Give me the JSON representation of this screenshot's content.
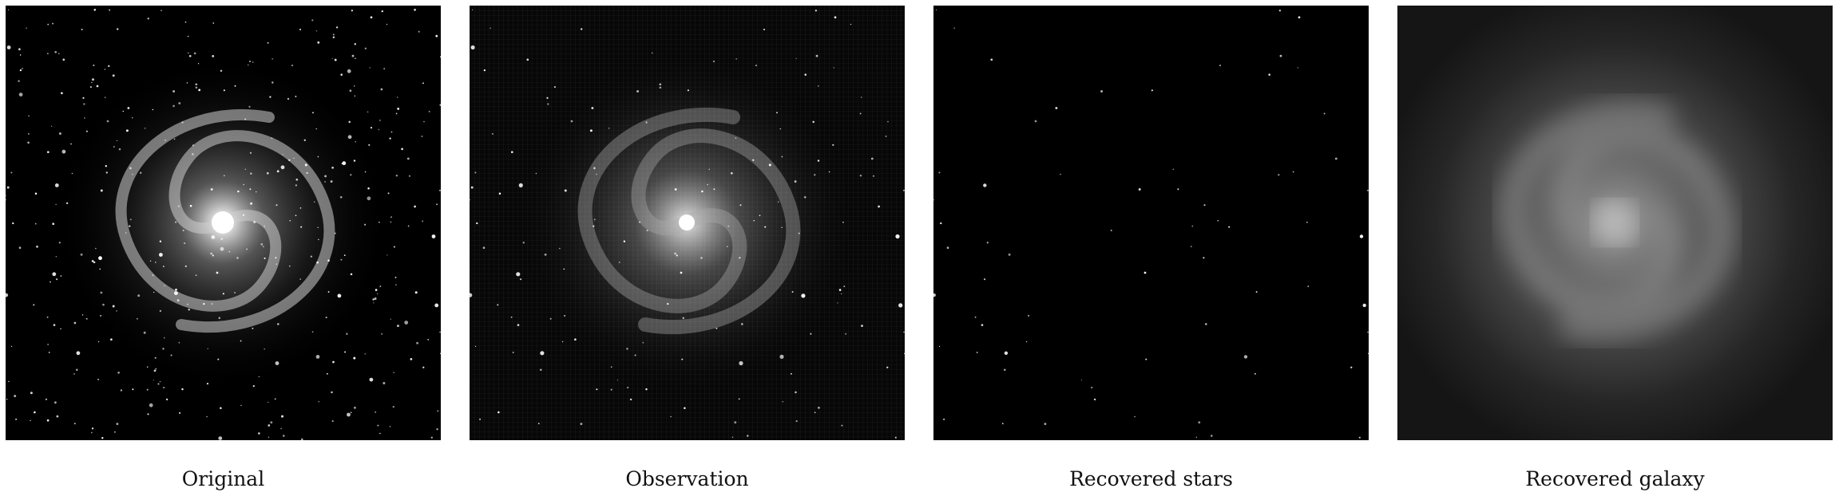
{
  "figure": {
    "panels": [
      {
        "caption": "Original",
        "image": "spiral-galaxy-with-dense-starfield"
      },
      {
        "caption": "Observation",
        "image": "noisy-gridded-reconstruction-of-galaxy"
      },
      {
        "caption": "Recovered stars",
        "image": "sparse-point-sources-only"
      },
      {
        "caption": "Recovered galaxy",
        "image": "smooth-diffuse-galaxy-only"
      }
    ]
  }
}
